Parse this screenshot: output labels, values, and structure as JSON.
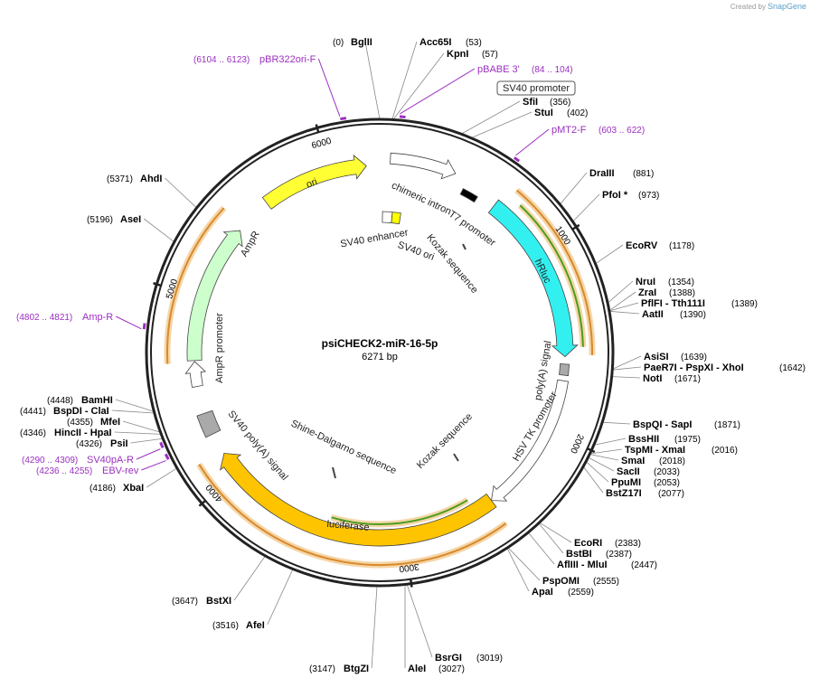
{
  "header": {
    "created_by": "Created by",
    "brand": "SnapGene"
  },
  "map": {
    "title": "psiCHECK2-miR-16-5p",
    "length": "6271 bp",
    "ruler": [
      1000,
      2000,
      3000,
      4000,
      5000,
      6000
    ]
  },
  "sites": [
    {
      "name": "BglII",
      "position": "(0)"
    },
    {
      "name": "Acc65I",
      "position": "(53)"
    },
    {
      "name": "KpnI",
      "position": "(57)"
    },
    {
      "name": "SfiI",
      "position": "(356)"
    },
    {
      "name": "StuI",
      "position": "(402)"
    },
    {
      "name": "DraIII",
      "position": "(881)"
    },
    {
      "name": "PfoI *",
      "position": "(973)"
    },
    {
      "name": "EcoRV",
      "position": "(1178)"
    },
    {
      "name": "NruI",
      "position": "(1354)"
    },
    {
      "name": "ZraI",
      "position": "(1388)"
    },
    {
      "name": "PflFI - Tth111I",
      "position": "(1389)"
    },
    {
      "name": "AatII",
      "position": "(1390)"
    },
    {
      "name": "AsiSI",
      "position": "(1639)"
    },
    {
      "name": "PaeR7I - PspXI - XhoI",
      "position": "(1642)"
    },
    {
      "name": "NotI",
      "position": "(1671)"
    },
    {
      "name": "BspQI - SapI",
      "position": "(1871)"
    },
    {
      "name": "BssHII",
      "position": "(1975)"
    },
    {
      "name": "TspMI - XmaI",
      "position": "(2016)"
    },
    {
      "name": "SmaI",
      "position": "(2018)"
    },
    {
      "name": "SacII",
      "position": "(2033)"
    },
    {
      "name": "PpuMI",
      "position": "(2053)"
    },
    {
      "name": "BstZ17I",
      "position": "(2077)"
    },
    {
      "name": "EcoRI",
      "position": "(2383)"
    },
    {
      "name": "BstBI",
      "position": "(2387)"
    },
    {
      "name": "AflIII - MluI",
      "position": "(2447)"
    },
    {
      "name": "PspOMI",
      "position": "(2555)"
    },
    {
      "name": "ApaI",
      "position": "(2559)"
    },
    {
      "name": "BsrGI",
      "position": "(3019)"
    },
    {
      "name": "AleI",
      "position": "(3027)"
    },
    {
      "name": "BtgZI",
      "position": "(3147)"
    },
    {
      "name": "AfeI",
      "position": "(3516)"
    },
    {
      "name": "BstXI",
      "position": "(3647)"
    },
    {
      "name": "XbaI",
      "position": "(4186)"
    },
    {
      "name": "PsiI",
      "position": "(4326)"
    },
    {
      "name": "HincII - HpaI",
      "position": "(4346)"
    },
    {
      "name": "MfeI",
      "position": "(4355)"
    },
    {
      "name": "BspDI - ClaI",
      "position": "(4441)"
    },
    {
      "name": "BamHI",
      "position": "(4448)"
    },
    {
      "name": "AseI",
      "position": "(5196)"
    },
    {
      "name": "AhdI",
      "position": "(5371)"
    }
  ],
  "primers": [
    {
      "name": "pBR322ori-F",
      "range": "(6104 .. 6123)"
    },
    {
      "name": "pBABE 3'",
      "range": "(84 .. 104)"
    },
    {
      "name": "pMT2-F",
      "range": "(603 .. 622)"
    },
    {
      "name": "Amp-R",
      "range": "(4802 .. 4821)"
    },
    {
      "name": "SV40pA-R",
      "range": "(4290 .. 4309)"
    },
    {
      "name": "EBV-rev",
      "range": "(4236 .. 4255)"
    }
  ],
  "features": [
    {
      "label": "SV40 promoter"
    },
    {
      "label": "chimeric intron"
    },
    {
      "label": "T7 promoter"
    },
    {
      "label": "hRluc"
    },
    {
      "label": "poly(A) signal"
    },
    {
      "label": "HSV TK promoter"
    },
    {
      "label": "luciferase"
    },
    {
      "label": "SV40 poly(A) signal"
    },
    {
      "label": "AmpR promoter"
    },
    {
      "label": "AmpR"
    },
    {
      "label": "ori"
    },
    {
      "label": "SV40 enhancer"
    },
    {
      "label": "SV40 ori"
    },
    {
      "label": "Kozak sequence"
    },
    {
      "label": "Kozak sequence"
    },
    {
      "label": "Shine-Dalgarno sequence"
    }
  ]
}
